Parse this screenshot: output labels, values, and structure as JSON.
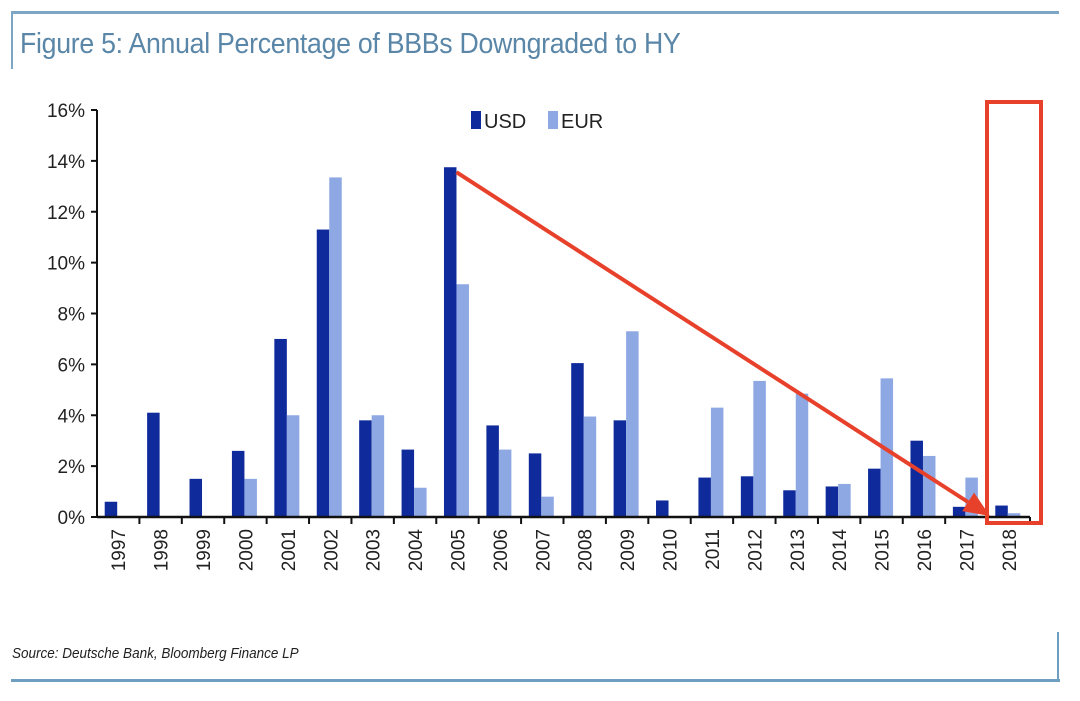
{
  "header": {
    "title": "Figure 5: Annual Percentage of BBBs Downgraded to HY"
  },
  "footer": {
    "source": "Source: Deutsche Bank, Bloomberg Finance LP"
  },
  "chart_data": {
    "type": "bar",
    "title": "Figure 5: Annual Percentage of BBBs Downgraded to HY",
    "xlabel": "",
    "ylabel": "",
    "ylim": [
      0,
      16
    ],
    "yticks": [
      "0%",
      "2%",
      "4%",
      "6%",
      "8%",
      "10%",
      "12%",
      "14%",
      "16%"
    ],
    "grid": false,
    "legend": "top-center",
    "categories": [
      "1997",
      "1998",
      "1999",
      "2000",
      "2001",
      "2002",
      "2003",
      "2004",
      "2005",
      "2006",
      "2007",
      "2008",
      "2009",
      "2010",
      "2011",
      "2012",
      "2013",
      "2014",
      "2015",
      "2016",
      "2017",
      "2018"
    ],
    "series": [
      {
        "name": "USD",
        "color": "#0f2a9a",
        "values": [
          0.6,
          4.1,
          1.5,
          2.6,
          7.0,
          11.3,
          3.8,
          2.65,
          13.75,
          3.6,
          2.5,
          6.05,
          3.8,
          0.65,
          1.55,
          1.6,
          1.05,
          1.2,
          1.9,
          3.0,
          0.4,
          0.45
        ]
      },
      {
        "name": "EUR",
        "color": "#8ea8e4",
        "values": [
          0,
          0,
          0,
          1.5,
          4.0,
          13.35,
          4.0,
          1.15,
          9.15,
          2.65,
          0.8,
          3.95,
          7.3,
          0,
          4.3,
          5.35,
          4.85,
          1.3,
          5.45,
          2.4,
          1.55,
          0.15
        ]
      }
    ],
    "annotations": {
      "arrow": {
        "from_category": "2005",
        "to_category": "2018",
        "color": "#e8412b"
      },
      "highlight_box": {
        "category": "2018",
        "color": "#e8412b"
      }
    }
  }
}
